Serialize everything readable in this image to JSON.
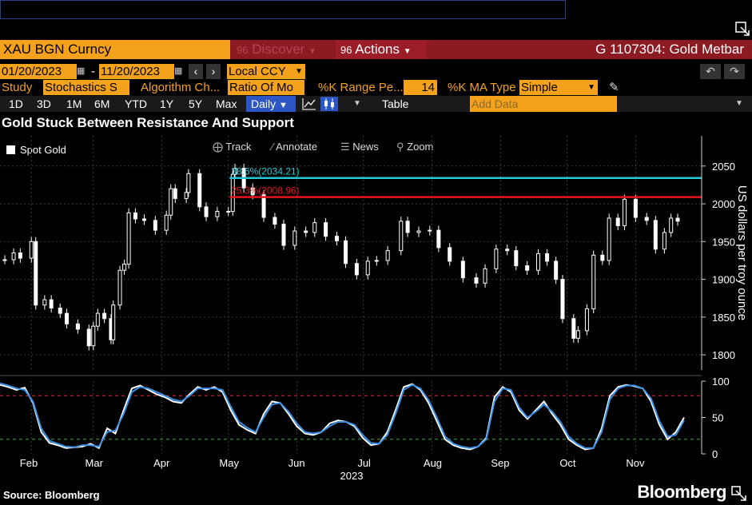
{
  "top_bar": {
    "ticker": "XAU BGN Curncy",
    "discover_label": "Discover",
    "actions_label": "Actions",
    "security_title": "G 1107304: Gold Metbar"
  },
  "date_row": {
    "start_date": "01/20/2023",
    "separator": "-",
    "end_date": "11/20/2023",
    "currency": "Local CCY"
  },
  "study_row": {
    "study_label": "Study",
    "study_value": "Stochastics S",
    "algorithm_label": "Algorithm Ch...",
    "algorithm_value": "Ratio Of Mo",
    "k_range_label": "%K Range Pe...",
    "k_range_value": "14",
    "k_ma_label": "%K MA Type",
    "k_ma_value": "Simple"
  },
  "period_toolbar": {
    "periods": [
      "1D",
      "3D",
      "1M",
      "6M",
      "YTD",
      "1Y",
      "5Y",
      "Max"
    ],
    "frequency": "Daily",
    "table_label": "Table",
    "add_data_placeholder": "Add Data"
  },
  "chart_toolbar": {
    "track": "Track",
    "annotate": "Annotate",
    "news": "News",
    "zoom": "Zoom"
  },
  "footer": {
    "source": "Source: Bloomberg",
    "brand": "Bloomberg"
  },
  "colors": {
    "orange": "#f4a11c",
    "title_bar": "#8b1a22",
    "resistance": "#25c8d6",
    "support": "#e5141e",
    "stoch_k": "#3a8ee6",
    "stoch_d": "#ffffff"
  },
  "chart_data": [
    {
      "type": "candlestick",
      "title": "Gold Stuck Between Resistance And Support",
      "legend": [
        "Spot Gold"
      ],
      "ylabel": "US dollars per troy ounce",
      "ylim": [
        1780,
        2090
      ],
      "yticks": [
        1800,
        1850,
        1900,
        1950,
        2000,
        2050
      ],
      "x_tick_labels": [
        "Feb",
        "Mar",
        "Apr",
        "May",
        "Jun",
        "Jul",
        "Aug",
        "Sep",
        "Oct",
        "Nov"
      ],
      "x_year_label": "2023",
      "x": [
        "2023-01-20",
        "2023-01-24",
        "2023-01-27",
        "2023-02-01",
        "2023-02-03",
        "2023-02-07",
        "2023-02-10",
        "2023-02-14",
        "2023-02-17",
        "2023-02-22",
        "2023-02-27",
        "2023-03-01",
        "2023-03-03",
        "2023-03-06",
        "2023-03-09",
        "2023-03-10",
        "2023-03-13",
        "2023-03-15",
        "2023-03-17",
        "2023-03-20",
        "2023-03-24",
        "2023-03-29",
        "2023-04-03",
        "2023-04-05",
        "2023-04-07",
        "2023-04-12",
        "2023-04-13",
        "2023-04-18",
        "2023-04-21",
        "2023-04-26",
        "2023-05-01",
        "2023-05-03",
        "2023-05-04",
        "2023-05-08",
        "2023-05-12",
        "2023-05-17",
        "2023-05-22",
        "2023-05-26",
        "2023-05-31",
        "2023-06-05",
        "2023-06-09",
        "2023-06-14",
        "2023-06-19",
        "2023-06-23",
        "2023-06-28",
        "2023-07-03",
        "2023-07-07",
        "2023-07-12",
        "2023-07-18",
        "2023-07-21",
        "2023-07-26",
        "2023-07-31",
        "2023-08-04",
        "2023-08-09",
        "2023-08-15",
        "2023-08-21",
        "2023-08-25",
        "2023-08-30",
        "2023-09-04",
        "2023-09-08",
        "2023-09-13",
        "2023-09-18",
        "2023-09-22",
        "2023-09-26",
        "2023-09-29",
        "2023-10-04",
        "2023-10-06",
        "2023-10-10",
        "2023-10-13",
        "2023-10-17",
        "2023-10-20",
        "2023-10-24",
        "2023-10-27",
        "2023-11-01",
        "2023-11-06",
        "2023-11-10",
        "2023-11-14",
        "2023-11-17",
        "2023-11-20"
      ],
      "close": [
        1926,
        1935,
        1928,
        1950,
        1866,
        1873,
        1862,
        1855,
        1841,
        1834,
        1812,
        1838,
        1855,
        1848,
        1820,
        1866,
        1912,
        1920,
        1988,
        1980,
        1978,
        1965,
        1985,
        2020,
        2007,
        2015,
        2040,
        1996,
        1983,
        1990,
        1990,
        2039,
        2047,
        2021,
        2012,
        1982,
        1973,
        1945,
        1964,
        1962,
        1975,
        1957,
        1951,
        1921,
        1906,
        1924,
        1925,
        1938,
        1977,
        1962,
        1964,
        1965,
        1942,
        1924,
        1902,
        1895,
        1914,
        1940,
        1938,
        1918,
        1912,
        1934,
        1924,
        1900,
        1848,
        1822,
        1832,
        1861,
        1932,
        1925,
        1981,
        1971,
        2006,
        1982,
        1978,
        1940,
        1962,
        1981,
        1977
      ],
      "reference_lines": [
        {
          "label": "38.6%(2034.21)",
          "value": 2034.21,
          "color": "#25c8d6"
        },
        {
          "label": "25.3%(2008.96)",
          "value": 2008.96,
          "color": "#e5141e"
        }
      ]
    },
    {
      "type": "line",
      "ylim": [
        0,
        100
      ],
      "yticks": [
        0,
        50,
        100
      ],
      "overbought": 80,
      "oversold": 20,
      "series": [
        {
          "values": [
            95,
            92,
            88,
            91,
            70,
            30,
            15,
            12,
            8,
            9,
            10,
            14,
            8,
            35,
            28,
            60,
            90,
            94,
            88,
            82,
            78,
            72,
            70,
            82,
            92,
            88,
            92,
            85,
            60,
            40,
            33,
            28,
            55,
            72,
            70,
            55,
            38,
            28,
            26,
            30,
            42,
            46,
            44,
            38,
            22,
            12,
            14,
            30,
            60,
            92,
            96,
            88,
            70,
            45,
            20,
            12,
            8,
            6,
            10,
            22,
            78,
            92,
            85,
            60,
            48,
            60,
            72,
            55,
            40,
            20,
            12,
            6,
            8,
            35,
            80,
            92,
            95,
            93,
            90,
            72,
            40,
            20,
            30,
            50
          ]
        },
        {
          "values": [
            97,
            94,
            90,
            88,
            72,
            35,
            18,
            14,
            10,
            9,
            12,
            12,
            10,
            30,
            32,
            55,
            85,
            92,
            90,
            85,
            80,
            75,
            72,
            80,
            90,
            90,
            90,
            88,
            65,
            44,
            36,
            30,
            50,
            68,
            70,
            58,
            42,
            30,
            28,
            30,
            38,
            44,
            44,
            40,
            26,
            15,
            14,
            26,
            55,
            88,
            95,
            90,
            74,
            50,
            24,
            14,
            10,
            8,
            10,
            20,
            72,
            90,
            88,
            64,
            50,
            58,
            68,
            58,
            44,
            24,
            14,
            8,
            8,
            30,
            75,
            90,
            94,
            94,
            90,
            76,
            45,
            24,
            26,
            46
          ]
        }
      ]
    }
  ]
}
